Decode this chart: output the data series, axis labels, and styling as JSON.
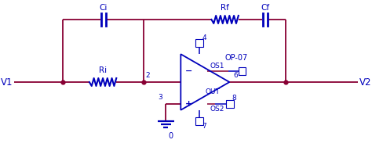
{
  "bg_color": "#ffffff",
  "wire_color": "#880033",
  "component_color": "#0000bb",
  "label_color": "#0000bb",
  "node_color": "#880033",
  "fig_width": 4.74,
  "fig_height": 1.97,
  "dpi": 100,
  "Ci_label": "Ci",
  "Ri_label": "Ri",
  "Rf_label": "Rf",
  "Cf_label": "Cf",
  "OP07_label": "OP-07",
  "OUT_label": "OUT",
  "OS1_label": "OS1",
  "OS2_label": "OS2",
  "V1_label": "V1",
  "V2_label": "V2",
  "gnd_label": "0",
  "node_4_label": "4",
  "node_6_label": "6",
  "node_3_label": "3",
  "node_7_label": "7",
  "node_2_label": "2",
  "node_8_label": "8"
}
